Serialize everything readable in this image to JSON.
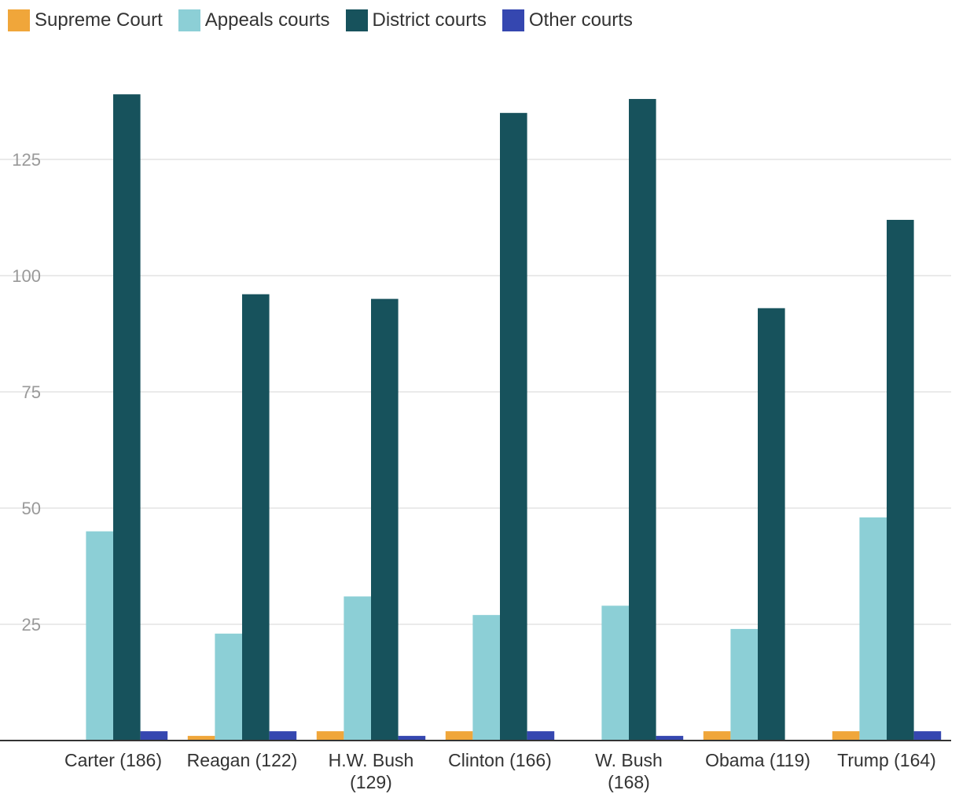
{
  "chart_data": {
    "type": "bar",
    "title": "",
    "xlabel": "",
    "ylabel": "",
    "categories": [
      [
        "Carter (186)"
      ],
      [
        "Reagan (122)"
      ],
      [
        "H.W. Bush",
        "(129)"
      ],
      [
        "Clinton (166)"
      ],
      [
        "W. Bush",
        "(168)"
      ],
      [
        "Obama (119)"
      ],
      [
        "Trump (164)"
      ]
    ],
    "series": [
      {
        "name": "Supreme Court",
        "color": "#f0a63a",
        "values": [
          0,
          1,
          2,
          2,
          0,
          2,
          2
        ]
      },
      {
        "name": "Appeals courts",
        "color": "#8ccfd6",
        "values": [
          45,
          23,
          31,
          27,
          29,
          24,
          48
        ]
      },
      {
        "name": "District courts",
        "color": "#17525c",
        "values": [
          139,
          96,
          95,
          135,
          138,
          93,
          112
        ]
      },
      {
        "name": "Other courts",
        "color": "#3547b0",
        "values": [
          2,
          2,
          1,
          2,
          1,
          0,
          2
        ]
      }
    ],
    "ylim": [
      0,
      145
    ],
    "yticks": [
      25,
      50,
      75,
      100,
      125
    ],
    "grid": true,
    "legend_position": "top-left"
  }
}
